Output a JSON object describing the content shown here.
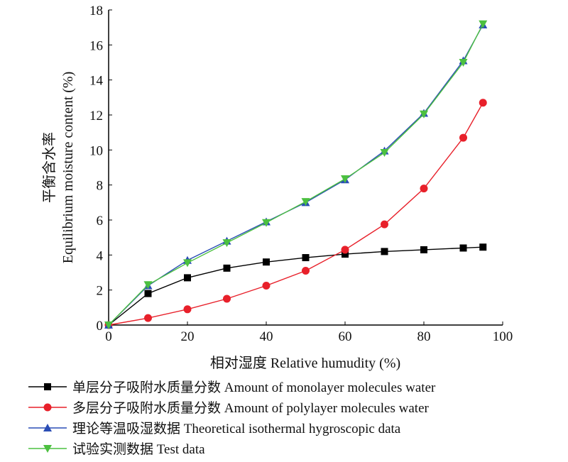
{
  "chart_data": {
    "type": "line",
    "xlabel": "相对湿度 Relative humudity (%)",
    "ylabel_cn": "平衡含水率",
    "ylabel_en": "Equilibrium moisture content (%)",
    "xlim": [
      0,
      100
    ],
    "ylim": [
      0,
      18
    ],
    "xticks": [
      0,
      20,
      40,
      60,
      80,
      100
    ],
    "yticks": [
      0,
      2,
      4,
      6,
      8,
      10,
      12,
      14,
      16,
      18
    ],
    "grid": false,
    "legend_placement": "bottom",
    "x": [
      0,
      10,
      20,
      30,
      40,
      50,
      60,
      70,
      80,
      90,
      95
    ],
    "series": [
      {
        "name": "单层分子吸附水质量分数 Amount of monolayer molecules water",
        "color": "#000000",
        "marker": "square",
        "values": [
          0,
          1.8,
          2.7,
          3.25,
          3.6,
          3.85,
          4.05,
          4.2,
          4.3,
          4.4,
          4.45
        ]
      },
      {
        "name": "多层分子吸附水质量分数 Amount of polylayer molecules water",
        "color": "#e8202a",
        "marker": "circle",
        "values": [
          0,
          0.4,
          0.9,
          1.5,
          2.25,
          3.1,
          4.3,
          5.75,
          7.8,
          10.7,
          12.7
        ]
      },
      {
        "name": "理论等温吸湿数据 Theoretical isothermal hygroscopic data",
        "color": "#2a4db5",
        "marker": "triangle-up",
        "values": [
          0,
          2.25,
          3.7,
          4.8,
          5.9,
          7.0,
          8.3,
          9.95,
          12.1,
          15.1,
          17.15
        ]
      },
      {
        "name": "试验实测数据 Test data",
        "color": "#4cc040",
        "marker": "triangle-down",
        "values": [
          0,
          2.3,
          3.55,
          4.7,
          5.85,
          7.05,
          8.35,
          9.85,
          12.05,
          15.0,
          17.2
        ]
      }
    ]
  }
}
